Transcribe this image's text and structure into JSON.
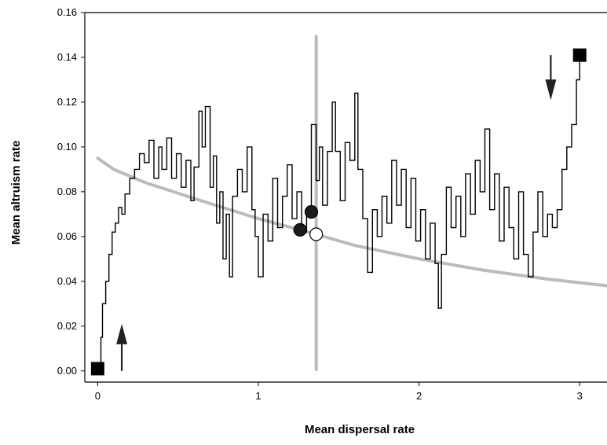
{
  "chart_data": {
    "type": "line",
    "xlabel": "Mean dispersal rate",
    "ylabel": "Mean altruism rate",
    "xlim": [
      -0.08,
      3.17
    ],
    "ylim": [
      -0.005,
      0.16
    ],
    "x_ticks": [
      0,
      1,
      2,
      3
    ],
    "x_tick_labels": [
      "0",
      "1",
      "2",
      "3"
    ],
    "y_ticks": [
      0.0,
      0.02,
      0.04,
      0.06,
      0.08,
      0.1,
      0.12,
      0.14,
      0.16
    ],
    "y_tick_labels": [
      "0.00",
      "0.02",
      "0.04",
      "0.06",
      "0.08",
      "0.10",
      "0.12",
      "0.14",
      "0.16"
    ],
    "grid": false,
    "legend": "none",
    "series": [
      {
        "style": "step",
        "color": "#000000",
        "points": [
          [
            0.0,
            0.0
          ],
          [
            0.02,
            0.015
          ],
          [
            0.03,
            0.03
          ],
          [
            0.05,
            0.04
          ],
          [
            0.07,
            0.052
          ],
          [
            0.09,
            0.062
          ],
          [
            0.11,
            0.066
          ],
          [
            0.13,
            0.073
          ],
          [
            0.15,
            0.07
          ],
          [
            0.17,
            0.079
          ],
          [
            0.2,
            0.086
          ],
          [
            0.23,
            0.09
          ],
          [
            0.26,
            0.097
          ],
          [
            0.29,
            0.093
          ],
          [
            0.32,
            0.103
          ],
          [
            0.35,
            0.086
          ],
          [
            0.38,
            0.1
          ],
          [
            0.4,
            0.09
          ],
          [
            0.43,
            0.104
          ],
          [
            0.46,
            0.086
          ],
          [
            0.49,
            0.097
          ],
          [
            0.52,
            0.082
          ],
          [
            0.55,
            0.094
          ],
          [
            0.58,
            0.076
          ],
          [
            0.6,
            0.091
          ],
          [
            0.63,
            0.116
          ],
          [
            0.65,
            0.1
          ],
          [
            0.67,
            0.118
          ],
          [
            0.7,
            0.082
          ],
          [
            0.72,
            0.096
          ],
          [
            0.74,
            0.066
          ],
          [
            0.76,
            0.08
          ],
          [
            0.78,
            0.05
          ],
          [
            0.8,
            0.07
          ],
          [
            0.82,
            0.042
          ],
          [
            0.84,
            0.078
          ],
          [
            0.87,
            0.09
          ],
          [
            0.9,
            0.08
          ],
          [
            0.93,
            0.1
          ],
          [
            0.96,
            0.072
          ],
          [
            0.98,
            0.06
          ],
          [
            1.0,
            0.042
          ],
          [
            1.03,
            0.07
          ],
          [
            1.06,
            0.058
          ],
          [
            1.09,
            0.086
          ],
          [
            1.12,
            0.064
          ],
          [
            1.15,
            0.078
          ],
          [
            1.18,
            0.092
          ],
          [
            1.21,
            0.068
          ],
          [
            1.24,
            0.08
          ],
          [
            1.27,
            0.062
          ],
          [
            1.3,
            0.072
          ],
          [
            1.33,
            0.11
          ],
          [
            1.36,
            0.085
          ],
          [
            1.38,
            0.1
          ],
          [
            1.4,
            0.074
          ],
          [
            1.43,
            0.098
          ],
          [
            1.46,
            0.12
          ],
          [
            1.48,
            0.098
          ],
          [
            1.51,
            0.076
          ],
          [
            1.54,
            0.102
          ],
          [
            1.57,
            0.094
          ],
          [
            1.6,
            0.124
          ],
          [
            1.62,
            0.09
          ],
          [
            1.65,
            0.068
          ],
          [
            1.68,
            0.044
          ],
          [
            1.71,
            0.072
          ],
          [
            1.74,
            0.06
          ],
          [
            1.77,
            0.078
          ],
          [
            1.8,
            0.066
          ],
          [
            1.83,
            0.094
          ],
          [
            1.86,
            0.074
          ],
          [
            1.89,
            0.09
          ],
          [
            1.92,
            0.064
          ],
          [
            1.95,
            0.086
          ],
          [
            1.98,
            0.058
          ],
          [
            2.01,
            0.072
          ],
          [
            2.04,
            0.05
          ],
          [
            2.07,
            0.066
          ],
          [
            2.1,
            0.048
          ],
          [
            2.12,
            0.028
          ],
          [
            2.14,
            0.052
          ],
          [
            2.17,
            0.082
          ],
          [
            2.2,
            0.064
          ],
          [
            2.23,
            0.078
          ],
          [
            2.26,
            0.06
          ],
          [
            2.29,
            0.088
          ],
          [
            2.32,
            0.07
          ],
          [
            2.35,
            0.094
          ],
          [
            2.38,
            0.08
          ],
          [
            2.41,
            0.108
          ],
          [
            2.44,
            0.072
          ],
          [
            2.47,
            0.088
          ],
          [
            2.5,
            0.058
          ],
          [
            2.53,
            0.082
          ],
          [
            2.56,
            0.064
          ],
          [
            2.59,
            0.05
          ],
          [
            2.62,
            0.08
          ],
          [
            2.65,
            0.052
          ],
          [
            2.68,
            0.042
          ],
          [
            2.71,
            0.062
          ],
          [
            2.74,
            0.08
          ],
          [
            2.77,
            0.06
          ],
          [
            2.8,
            0.07
          ],
          [
            2.83,
            0.064
          ],
          [
            2.86,
            0.072
          ],
          [
            2.89,
            0.09
          ],
          [
            2.92,
            0.1
          ],
          [
            2.95,
            0.11
          ],
          [
            2.98,
            0.13
          ],
          [
            3.0,
            0.14
          ]
        ]
      },
      {
        "style": "smooth",
        "color": "#bbbbbb",
        "points": [
          [
            0.0,
            0.095
          ],
          [
            0.1,
            0.09
          ],
          [
            0.3,
            0.084
          ],
          [
            0.6,
            0.077
          ],
          [
            1.0,
            0.068
          ],
          [
            1.36,
            0.061
          ],
          [
            1.6,
            0.056
          ],
          [
            2.0,
            0.05
          ],
          [
            2.4,
            0.045
          ],
          [
            2.8,
            0.041
          ],
          [
            3.17,
            0.038
          ]
        ]
      }
    ],
    "vertical_line": {
      "x": 1.36,
      "y_from": 0.0,
      "y_to": 0.15,
      "color": "#bbbbbb"
    },
    "markers": [
      {
        "shape": "square",
        "fill": "#000000",
        "x": 0.0,
        "y": 0.001
      },
      {
        "shape": "square",
        "fill": "#000000",
        "x": 3.0,
        "y": 0.141
      },
      {
        "shape": "circle",
        "fill": "#1a1a1a",
        "x": 1.26,
        "y": 0.063
      },
      {
        "shape": "circle",
        "fill": "#1a1a1a",
        "x": 1.33,
        "y": 0.071
      },
      {
        "shape": "circle",
        "fill": "#ffffff",
        "x": 1.36,
        "y": 0.061
      }
    ],
    "arrows": [
      {
        "direction": "up",
        "x": 0.15,
        "y_tail": 0.0,
        "y_head": 0.021
      },
      {
        "direction": "down",
        "x": 2.82,
        "y_tail": 0.141,
        "y_head": 0.121
      }
    ]
  }
}
